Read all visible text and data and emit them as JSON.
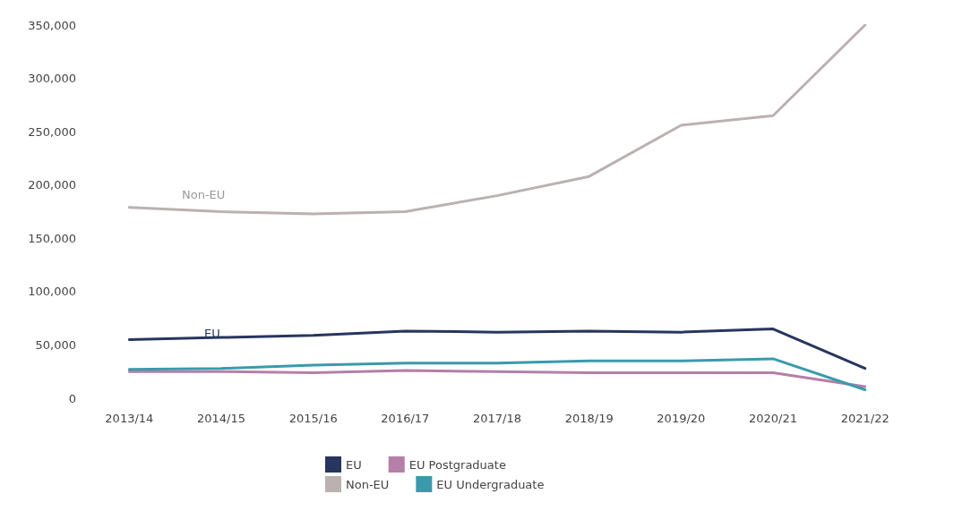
{
  "chart_data": {
    "type": "line",
    "categories": [
      "2013/14",
      "2014/15",
      "2015/16",
      "2016/17",
      "2017/18",
      "2018/19",
      "2019/20",
      "2020/21",
      "2021/22"
    ],
    "series": [
      {
        "name": "EU",
        "color": "#27365e",
        "values": [
          55000,
          57000,
          59000,
          63000,
          62000,
          63000,
          62000,
          65000,
          28000
        ]
      },
      {
        "name": "EU Postgraduate",
        "color": "#b57fa8",
        "values": [
          25000,
          25000,
          24000,
          26000,
          25000,
          24000,
          24000,
          24000,
          11000
        ]
      },
      {
        "name": "Non-EU",
        "color": "#bbb1b1",
        "values": [
          179000,
          175000,
          173000,
          175000,
          190000,
          208000,
          256000,
          265000,
          350000
        ]
      },
      {
        "name": "EU Undergraduate",
        "color": "#3a9aab",
        "values": [
          27000,
          28000,
          31000,
          33000,
          33000,
          35000,
          35000,
          37000,
          8000
        ]
      }
    ],
    "annotations": [
      "Non-EU",
      "EU"
    ],
    "ylim": [
      0,
      350000
    ],
    "yticks": [
      0,
      {
        "value": 50000,
        "label": "50,000"
      },
      {
        "value": 100000,
        "label": "100,000"
      },
      {
        "value": 150000,
        "label": "150,000"
      },
      {
        "value": 200000,
        "label": "200,000"
      },
      {
        "value": 250000,
        "label": "250,000"
      },
      {
        "value": 300000,
        "label": "300,000"
      },
      {
        "value": 350000,
        "label": "350,000"
      }
    ],
    "grid": false,
    "legend": "bottom",
    "marker": "none",
    "line_style": "solid"
  }
}
